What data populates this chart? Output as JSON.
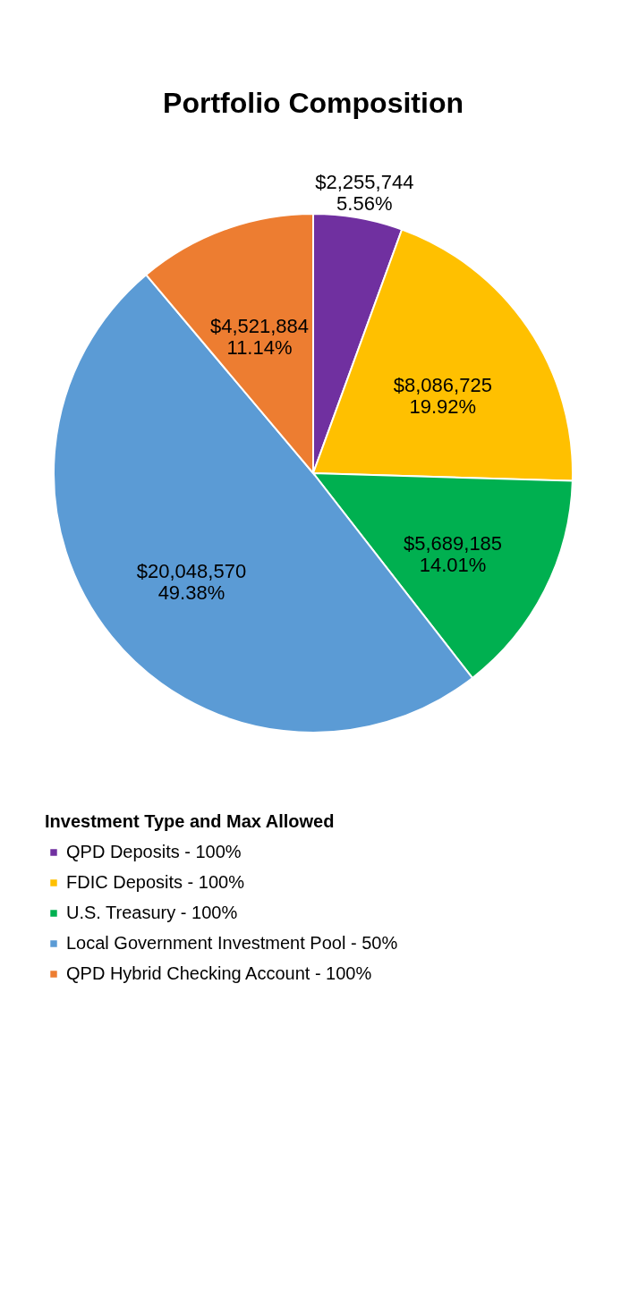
{
  "chart_data": {
    "type": "pie",
    "title": "Portfolio Composition",
    "legend_title": "Investment Type and Max Allowed",
    "categories": [
      "QPD Deposits - 100%",
      "FDIC Deposits - 100%",
      "U.S. Treasury - 100%",
      "Local Government Investment Pool - 50%",
      "QPD Hybrid Checking Account - 100%"
    ],
    "values": [
      2255744,
      8086725,
      5689185,
      20048570,
      4521884
    ],
    "colors": [
      "#7030a0",
      "#ffc000",
      "#00b050",
      "#5b9bd5",
      "#ed7d31"
    ],
    "value_labels": [
      "$2,255,744\n5.56%",
      "$8,086,725\n19.92%",
      "$5,689,185\n14.01%",
      "$20,048,570\n49.38%",
      "$4,521,884\n11.14%"
    ],
    "legend": "bottom"
  }
}
